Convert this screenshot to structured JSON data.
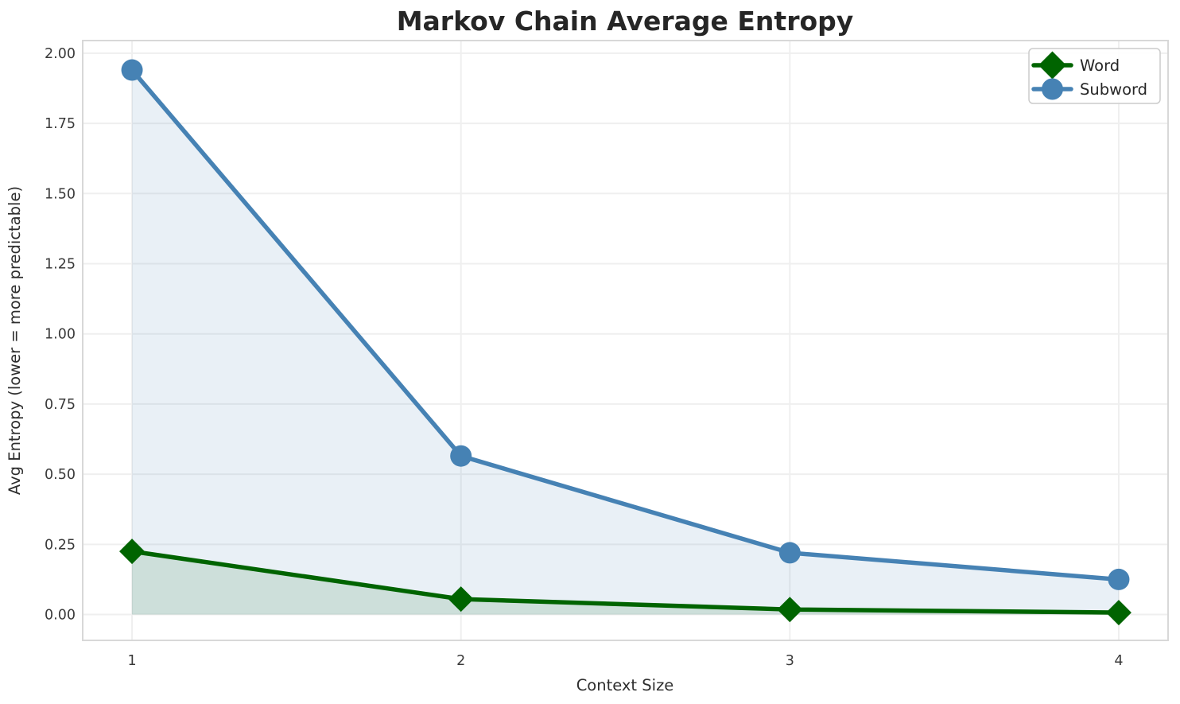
{
  "chart_data": {
    "type": "line",
    "title": "Markov Chain Average Entropy",
    "xlabel": "Context Size",
    "ylabel": "Avg Entropy (lower = more predictable)",
    "x": [
      1,
      2,
      3,
      4
    ],
    "x_tick_labels": [
      "1",
      "2",
      "3",
      "4"
    ],
    "y_tick_values": [
      0.0,
      0.25,
      0.5,
      0.75,
      1.0,
      1.25,
      1.5,
      1.75,
      2.0
    ],
    "y_tick_labels": [
      "0.00",
      "0.25",
      "0.50",
      "0.75",
      "1.00",
      "1.25",
      "1.50",
      "1.75",
      "2.00"
    ],
    "xlim": [
      0.85,
      4.15
    ],
    "ylim": [
      -0.092,
      2.045
    ],
    "grid": true,
    "legend_position": "upper right",
    "series": [
      {
        "name": "Word",
        "marker": "diamond",
        "color": "#006400",
        "area_fill": true,
        "fill_alpha": 0.12,
        "values": [
          0.225,
          0.055,
          0.018,
          0.007
        ]
      },
      {
        "name": "Subword",
        "marker": "circle",
        "color": "#4682B4",
        "area_fill": true,
        "fill_alpha": 0.12,
        "values": [
          1.94,
          0.565,
          0.22,
          0.125
        ]
      }
    ],
    "colors": {
      "grid": "#efefef",
      "spine": "#d8d8d8",
      "title_text": "#262626",
      "tick_text": "#3a3a3a",
      "background": "#ffffff",
      "legend_border": "#cccccc",
      "legend_background": "#ffffff"
    }
  }
}
